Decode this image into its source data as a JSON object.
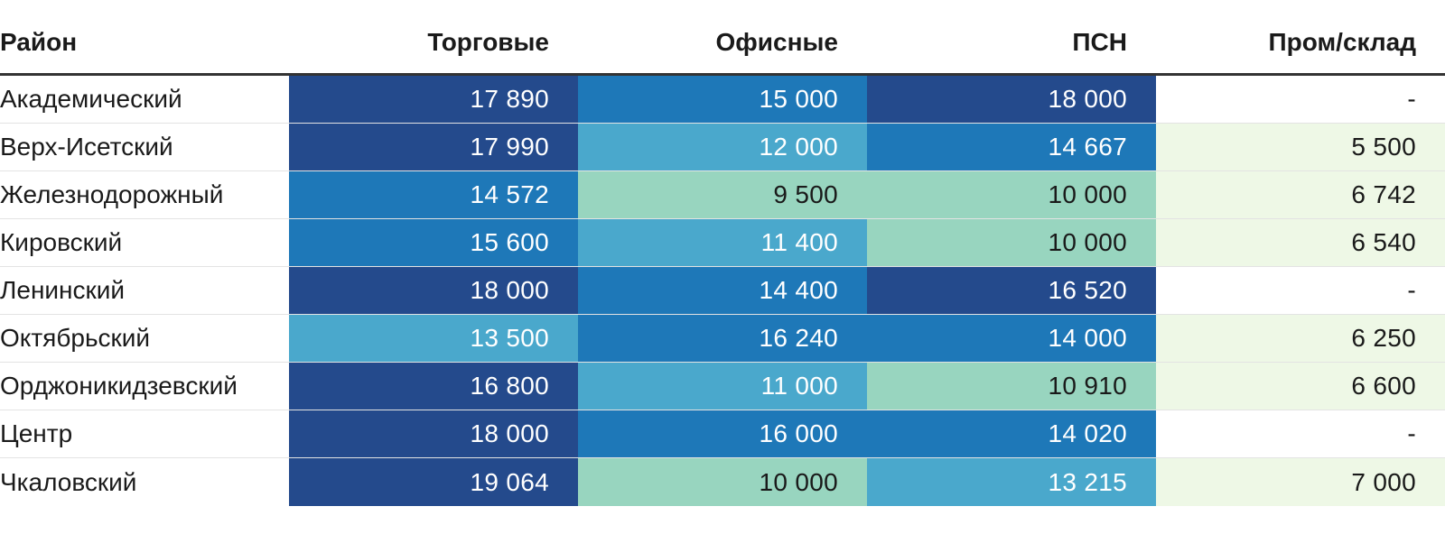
{
  "chart_data": {
    "type": "table",
    "columns": [
      "Район",
      "Торговые",
      "Офисные",
      "ПСН",
      "Пром/склад"
    ],
    "rows": [
      {
        "district": "Академический",
        "values": [
          "17 890",
          "15 000",
          "18 000",
          "-"
        ]
      },
      {
        "district": "Верх-Исетский",
        "values": [
          "17 990",
          "12 000",
          "14 667",
          "5 500"
        ]
      },
      {
        "district": "Железнодорожный",
        "values": [
          "14 572",
          "9 500",
          "10 000",
          "6 742"
        ]
      },
      {
        "district": "Кировский",
        "values": [
          "15 600",
          "11 400",
          "10 000",
          "6 540"
        ]
      },
      {
        "district": "Ленинский",
        "values": [
          "18 000",
          "14 400",
          "16 520",
          "-"
        ]
      },
      {
        "district": "Октябрьский",
        "values": [
          "13 500",
          "16 240",
          "14 000",
          "6 250"
        ]
      },
      {
        "district": "Орджоникидзевский",
        "values": [
          "16 800",
          "11 000",
          "10 910",
          "6 600"
        ]
      },
      {
        "district": "Центр",
        "values": [
          "18 000",
          "16 000",
          "14 020",
          "-"
        ]
      },
      {
        "district": "Чкаловский",
        "values": [
          "19 064",
          "10 000",
          "13 215",
          "7 000"
        ]
      }
    ],
    "heat_colors": {
      "very_high": "#244a8c",
      "high": "#1e78b8",
      "medium": "#4aa8cc",
      "low": "#98d5bf",
      "industrial": "#eef8e6",
      "empty": "#ffffff"
    }
  }
}
